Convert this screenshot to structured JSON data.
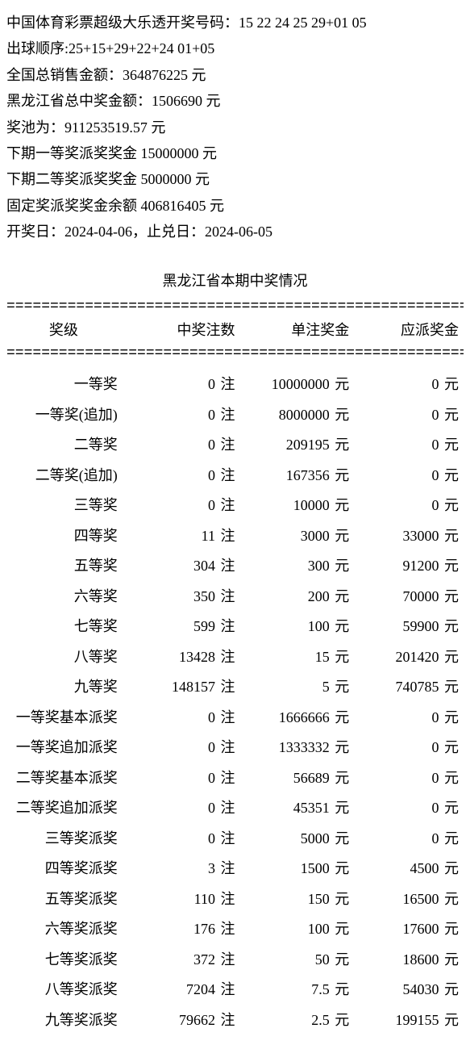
{
  "header": {
    "line1_label": "中国体育彩票超级大乐透开奖号码：",
    "line1_value": "15 22 24 25 29+01 05",
    "line2_label": "出球顺序:",
    "line2_value": "25+15+29+22+24 01+05",
    "line3_label": "全国总销售金额：",
    "line3_value": "364876225 元",
    "line4_label": "黑龙江省总中奖金额：",
    "line4_value": "1506690 元",
    "line5_label": "奖池为：",
    "line5_value": "911253519.57 元",
    "line6": "下期一等奖派奖奖金 15000000 元",
    "line7": "下期二等奖派奖奖金 5000000 元",
    "line8": "固定奖派奖奖金余额 406816405 元",
    "line9": "开奖日：2024-04-06，止兑日：2024-06-05"
  },
  "section_title": "黑龙江省本期中奖情况",
  "divider": "======================================================",
  "columns": {
    "c1": "奖级",
    "c2": "中奖注数",
    "c3": "单注奖金",
    "c4": "应派奖金"
  },
  "unit_count": "注",
  "unit_money": "元",
  "rows": [
    {
      "name": "一等奖",
      "count": "0",
      "per": "10000000",
      "total": "0"
    },
    {
      "name": "一等奖(追加)",
      "count": "0",
      "per": "8000000",
      "total": "0"
    },
    {
      "name": "二等奖",
      "count": "0",
      "per": "209195",
      "total": "0"
    },
    {
      "name": "二等奖(追加)",
      "count": "0",
      "per": "167356",
      "total": "0"
    },
    {
      "name": "三等奖",
      "count": "0",
      "per": "10000",
      "total": "0"
    },
    {
      "name": "四等奖",
      "count": "11",
      "per": "3000",
      "total": "33000"
    },
    {
      "name": "五等奖",
      "count": "304",
      "per": "300",
      "total": "91200"
    },
    {
      "name": "六等奖",
      "count": "350",
      "per": "200",
      "total": "70000"
    },
    {
      "name": "七等奖",
      "count": "599",
      "per": "100",
      "total": "59900"
    },
    {
      "name": "八等奖",
      "count": "13428",
      "per": "15",
      "total": "201420"
    },
    {
      "name": "九等奖",
      "count": "148157",
      "per": "5",
      "total": "740785"
    },
    {
      "name": "一等奖基本派奖",
      "count": "0",
      "per": "1666666",
      "total": "0"
    },
    {
      "name": "一等奖追加派奖",
      "count": "0",
      "per": "1333332",
      "total": "0"
    },
    {
      "name": "二等奖基本派奖",
      "count": "0",
      "per": "56689",
      "total": "0"
    },
    {
      "name": "二等奖追加派奖",
      "count": "0",
      "per": "45351",
      "total": "0"
    },
    {
      "name": "三等奖派奖",
      "count": "0",
      "per": "5000",
      "total": "0"
    },
    {
      "name": "四等奖派奖",
      "count": "3",
      "per": "1500",
      "total": "4500"
    },
    {
      "name": "五等奖派奖",
      "count": "110",
      "per": "150",
      "total": "16500"
    },
    {
      "name": "六等奖派奖",
      "count": "176",
      "per": "100",
      "total": "17600"
    },
    {
      "name": "七等奖派奖",
      "count": "372",
      "per": "50",
      "total": "18600"
    },
    {
      "name": "八等奖派奖",
      "count": "7204",
      "per": "7.5",
      "total": "54030"
    },
    {
      "name": "九等奖派奖",
      "count": "79662",
      "per": "2.5",
      "total": "199155"
    }
  ]
}
